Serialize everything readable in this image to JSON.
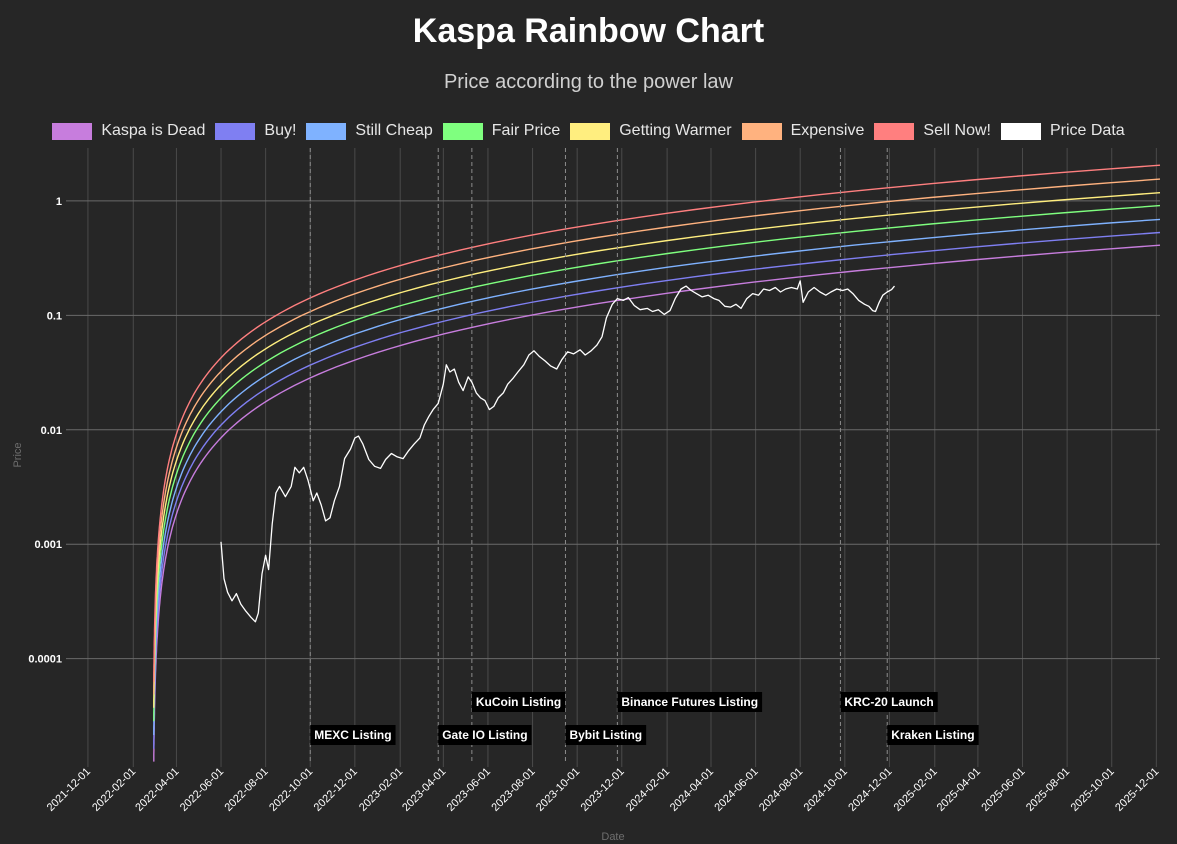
{
  "colors": {
    "background": "#262626",
    "grid": "#4a4a4a",
    "tick_text": "#ffffff",
    "axis_label": "#6e6e6e",
    "event_line": "#8c8c8c"
  },
  "chart_data": {
    "type": "line",
    "title": "Kaspa Rainbow Chart",
    "subtitle": "Price according to the power law",
    "xlabel": "Date",
    "ylabel": "Price",
    "yscale": "log",
    "ylim": [
      1.25e-05,
      2.9
    ],
    "xlim": [
      "2021-11-01",
      "2025-12-06"
    ],
    "grid": true,
    "legend_position": "top",
    "yticks": [
      {
        "value": 0.0001,
        "label": "0.0001"
      },
      {
        "value": 0.001,
        "label": "0.001"
      },
      {
        "value": 0.01,
        "label": "0.01"
      },
      {
        "value": 0.1,
        "label": "0.1"
      },
      {
        "value": 1,
        "label": "1"
      }
    ],
    "xticks": [
      "2021-12-01",
      "2022-02-01",
      "2022-04-01",
      "2022-06-01",
      "2022-08-01",
      "2022-10-01",
      "2022-12-01",
      "2023-02-01",
      "2023-04-01",
      "2023-06-01",
      "2023-08-01",
      "2023-10-01",
      "2023-12-01",
      "2024-02-01",
      "2024-04-01",
      "2024-06-01",
      "2024-08-01",
      "2024-10-01",
      "2024-12-01",
      "2025-02-01",
      "2025-04-01",
      "2025-06-01",
      "2025-08-01",
      "2025-10-01",
      "2025-12-01"
    ],
    "bands_start": "2022-03-01",
    "bands_end": "2025-12-06",
    "bands": [
      {
        "name": "Kaspa is Dead",
        "color": "#c77ddd",
        "y_start": 1.26e-05,
        "y_end": 0.41
      },
      {
        "name": "Buy!",
        "color": "#7f7ff2",
        "y_start": 1.63e-05,
        "y_end": 0.53
      },
      {
        "name": "Still Cheap",
        "color": "#7fb2ff",
        "y_start": 2.15e-05,
        "y_end": 0.69
      },
      {
        "name": "Fair Price",
        "color": "#7fff7f",
        "y_start": 2.84e-05,
        "y_end": 0.91
      },
      {
        "name": "Getting Warmer",
        "color": "#ffee7f",
        "y_start": 3.73e-05,
        "y_end": 1.18
      },
      {
        "name": "Expensive",
        "color": "#ffb27f",
        "y_start": 4.86e-05,
        "y_end": 1.55
      },
      {
        "name": "Sell Now!",
        "color": "#ff7f7f",
        "y_start": 6.3e-05,
        "y_end": 2.05
      }
    ],
    "price_series": {
      "name": "Price Data",
      "color": "#ffffff",
      "points": [
        [
          "2022-06-01",
          0.00105
        ],
        [
          "2022-06-05",
          0.0005
        ],
        [
          "2022-06-10",
          0.00038
        ],
        [
          "2022-06-16",
          0.00032
        ],
        [
          "2022-06-22",
          0.00037
        ],
        [
          "2022-06-28",
          0.0003
        ],
        [
          "2022-07-05",
          0.00026
        ],
        [
          "2022-07-12",
          0.00023
        ],
        [
          "2022-07-18",
          0.00021
        ],
        [
          "2022-07-22",
          0.00025
        ],
        [
          "2022-07-27",
          0.00055
        ],
        [
          "2022-08-01",
          0.0008
        ],
        [
          "2022-08-05",
          0.0006
        ],
        [
          "2022-08-10",
          0.0015
        ],
        [
          "2022-08-15",
          0.0028
        ],
        [
          "2022-08-20",
          0.0032
        ],
        [
          "2022-08-28",
          0.0026
        ],
        [
          "2022-09-05",
          0.0032
        ],
        [
          "2022-09-10",
          0.0047
        ],
        [
          "2022-09-16",
          0.0042
        ],
        [
          "2022-09-22",
          0.0047
        ],
        [
          "2022-09-28",
          0.0036
        ],
        [
          "2022-10-05",
          0.0024
        ],
        [
          "2022-10-10",
          0.0028
        ],
        [
          "2022-10-16",
          0.0022
        ],
        [
          "2022-10-22",
          0.0016
        ],
        [
          "2022-10-28",
          0.0017
        ],
        [
          "2022-11-03",
          0.0024
        ],
        [
          "2022-11-10",
          0.0032
        ],
        [
          "2022-11-17",
          0.0056
        ],
        [
          "2022-11-25",
          0.0068
        ],
        [
          "2022-12-01",
          0.0085
        ],
        [
          "2022-12-06",
          0.0088
        ],
        [
          "2022-12-12",
          0.0075
        ],
        [
          "2022-12-20",
          0.0055
        ],
        [
          "2022-12-28",
          0.0048
        ],
        [
          "2023-01-05",
          0.0046
        ],
        [
          "2023-01-12",
          0.0055
        ],
        [
          "2023-01-20",
          0.0062
        ],
        [
          "2023-01-28",
          0.0058
        ],
        [
          "2023-02-05",
          0.0056
        ],
        [
          "2023-02-12",
          0.0065
        ],
        [
          "2023-02-20",
          0.0075
        ],
        [
          "2023-02-28",
          0.0085
        ],
        [
          "2023-03-06",
          0.011
        ],
        [
          "2023-03-12",
          0.013
        ],
        [
          "2023-03-18",
          0.015
        ],
        [
          "2023-03-25",
          0.017
        ],
        [
          "2023-04-01",
          0.025
        ],
        [
          "2023-04-05",
          0.037
        ],
        [
          "2023-04-10",
          0.032
        ],
        [
          "2023-04-16",
          0.034
        ],
        [
          "2023-04-22",
          0.026
        ],
        [
          "2023-04-28",
          0.022
        ],
        [
          "2023-05-05",
          0.029
        ],
        [
          "2023-05-10",
          0.026
        ],
        [
          "2023-05-16",
          0.021
        ],
        [
          "2023-05-22",
          0.019
        ],
        [
          "2023-05-28",
          0.018
        ],
        [
          "2023-06-03",
          0.015
        ],
        [
          "2023-06-09",
          0.016
        ],
        [
          "2023-06-15",
          0.019
        ],
        [
          "2023-06-22",
          0.021
        ],
        [
          "2023-06-28",
          0.025
        ],
        [
          "2023-07-05",
          0.028
        ],
        [
          "2023-07-12",
          0.032
        ],
        [
          "2023-07-20",
          0.037
        ],
        [
          "2023-07-27",
          0.045
        ],
        [
          "2023-08-03",
          0.049
        ],
        [
          "2023-08-10",
          0.044
        ],
        [
          "2023-08-18",
          0.04
        ],
        [
          "2023-08-26",
          0.036
        ],
        [
          "2023-09-03",
          0.034
        ],
        [
          "2023-09-10",
          0.041
        ],
        [
          "2023-09-18",
          0.048
        ],
        [
          "2023-09-26",
          0.046
        ],
        [
          "2023-10-05",
          0.05
        ],
        [
          "2023-10-12",
          0.045
        ],
        [
          "2023-10-20",
          0.049
        ],
        [
          "2023-10-28",
          0.055
        ],
        [
          "2023-11-04",
          0.065
        ],
        [
          "2023-11-10",
          0.095
        ],
        [
          "2023-11-18",
          0.125
        ],
        [
          "2023-11-25",
          0.14
        ],
        [
          "2023-12-03",
          0.135
        ],
        [
          "2023-12-10",
          0.143
        ],
        [
          "2023-12-18",
          0.122
        ],
        [
          "2023-12-26",
          0.112
        ],
        [
          "2024-01-05",
          0.115
        ],
        [
          "2024-01-12",
          0.108
        ],
        [
          "2024-01-20",
          0.112
        ],
        [
          "2024-01-28",
          0.102
        ],
        [
          "2024-02-05",
          0.11
        ],
        [
          "2024-02-12",
          0.14
        ],
        [
          "2024-02-20",
          0.17
        ],
        [
          "2024-02-27",
          0.18
        ],
        [
          "2024-03-05",
          0.165
        ],
        [
          "2024-03-12",
          0.155
        ],
        [
          "2024-03-20",
          0.145
        ],
        [
          "2024-03-28",
          0.15
        ],
        [
          "2024-04-05",
          0.14
        ],
        [
          "2024-04-12",
          0.135
        ],
        [
          "2024-04-20",
          0.12
        ],
        [
          "2024-04-28",
          0.118
        ],
        [
          "2024-05-05",
          0.125
        ],
        [
          "2024-05-12",
          0.115
        ],
        [
          "2024-05-20",
          0.14
        ],
        [
          "2024-05-28",
          0.155
        ],
        [
          "2024-06-05",
          0.15
        ],
        [
          "2024-06-12",
          0.17
        ],
        [
          "2024-06-20",
          0.165
        ],
        [
          "2024-06-28",
          0.175
        ],
        [
          "2024-07-05",
          0.16
        ],
        [
          "2024-07-12",
          0.17
        ],
        [
          "2024-07-20",
          0.175
        ],
        [
          "2024-07-28",
          0.17
        ],
        [
          "2024-08-01",
          0.2
        ],
        [
          "2024-08-05",
          0.13
        ],
        [
          "2024-08-12",
          0.16
        ],
        [
          "2024-08-20",
          0.175
        ],
        [
          "2024-08-28",
          0.16
        ],
        [
          "2024-09-05",
          0.15
        ],
        [
          "2024-09-12",
          0.16
        ],
        [
          "2024-09-20",
          0.17
        ],
        [
          "2024-09-28",
          0.165
        ],
        [
          "2024-10-05",
          0.17
        ],
        [
          "2024-10-12",
          0.155
        ],
        [
          "2024-10-20",
          0.135
        ],
        [
          "2024-10-28",
          0.125
        ],
        [
          "2024-11-03",
          0.12
        ],
        [
          "2024-11-08",
          0.11
        ],
        [
          "2024-11-12",
          0.108
        ],
        [
          "2024-11-17",
          0.13
        ],
        [
          "2024-11-22",
          0.15
        ],
        [
          "2024-11-28",
          0.16
        ],
        [
          "2024-12-04",
          0.168
        ],
        [
          "2024-12-08",
          0.18
        ]
      ]
    },
    "events": [
      {
        "date": "2022-10-01",
        "label": "MEXC Listing",
        "row": 2
      },
      {
        "date": "2023-03-25",
        "label": "Gate IO Listing",
        "row": 2
      },
      {
        "date": "2023-05-10",
        "label": "KuCoin Listing",
        "row": 1
      },
      {
        "date": "2023-09-15",
        "label": "Bybit Listing",
        "row": 2
      },
      {
        "date": "2023-11-25",
        "label": "Binance Futures Listing",
        "row": 1
      },
      {
        "date": "2024-09-25",
        "label": "KRC-20 Launch",
        "row": 1
      },
      {
        "date": "2024-11-28",
        "label": "Kraken Listing",
        "row": 2
      }
    ]
  }
}
